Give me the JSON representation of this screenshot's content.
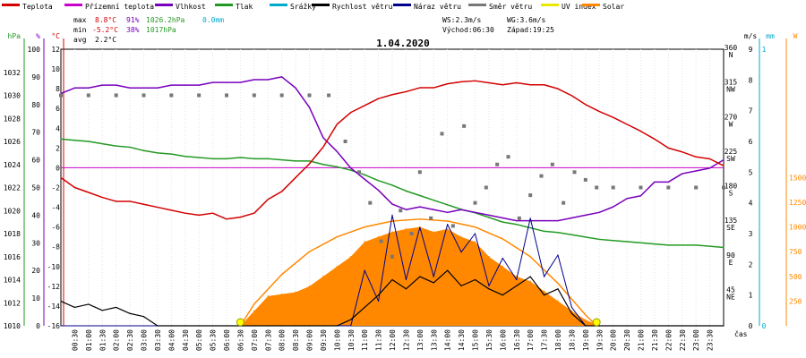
{
  "legend": [
    {
      "label": "Teplota",
      "color": "#d40000"
    },
    {
      "label": "Přízemní teplota",
      "color": "#cc00cc"
    },
    {
      "label": "Vlhkost",
      "color": "#7700bb"
    },
    {
      "label": "Tlak",
      "color": "#229922"
    },
    {
      "label": "Srážky",
      "color": "#00aacc"
    },
    {
      "label": "Rychlost větru",
      "color": "#000000"
    },
    {
      "label": "Náraz větru",
      "color": "#00008b"
    },
    {
      "label": "Směr větru",
      "color": "#777777"
    },
    {
      "label": "UV index",
      "color": "#e8e800"
    },
    {
      "label": "Solar",
      "color": "#ff8800"
    }
  ],
  "stats": {
    "max_label": "max",
    "min_label": "min",
    "avg_label": "avg",
    "max_temp": "8.8°C",
    "min_temp": "-5.2°C",
    "avg_temp": "2.2°C",
    "max_hum": "91%",
    "min_hum": "38%",
    "max_press": "1026.2hPa",
    "min_press": "1017hPa",
    "max_rain": "0.0mm"
  },
  "info": {
    "ws": "WS:2.3m/s",
    "wg": "WG:3.6m/s",
    "sunrise": "Východ:06:30",
    "sunset": "Západ:19:25"
  },
  "chart_data": {
    "type": "line",
    "title": "1.04.2020",
    "x_unit": "čas",
    "x_ticks": [
      "00:30",
      "01:00",
      "01:30",
      "02:00",
      "02:30",
      "03:00",
      "03:30",
      "04:00",
      "04:30",
      "05:00",
      "05:30",
      "06:00",
      "06:30",
      "07:00",
      "07:30",
      "08:00",
      "08:30",
      "09:00",
      "09:30",
      "10:00",
      "10:30",
      "11:00",
      "11:30",
      "12:00",
      "12:30",
      "13:00",
      "13:30",
      "14:00",
      "14:30",
      "15:00",
      "15:30",
      "16:00",
      "16:30",
      "17:00",
      "17:30",
      "18:00",
      "18:30",
      "19:00",
      "19:30",
      "20:00",
      "20:30",
      "21:00",
      "21:30",
      "22:00",
      "22:30",
      "23:00",
      "23:30"
    ],
    "axes": {
      "pressure": {
        "unit": "hPa",
        "range": [
          1010,
          1034
        ],
        "ticks": [
          "1010",
          "1012",
          "1014",
          "1016",
          "1018",
          "1020",
          "1022",
          "1024",
          "1026",
          "1028",
          "1030",
          "1032"
        ]
      },
      "humidity": {
        "unit": "%",
        "range": [
          0,
          100
        ],
        "ticks": [
          "0",
          "10",
          "20",
          "30",
          "40",
          "50",
          "60",
          "70",
          "80",
          "90",
          "100"
        ]
      },
      "temperature": {
        "unit": "°C",
        "range": [
          -16,
          12
        ],
        "ticks": [
          "-16",
          "-14",
          "-12",
          "-10",
          "-8",
          "-6",
          "-4",
          "-2",
          "0",
          "2",
          "4",
          "6",
          "8",
          "10",
          "12"
        ]
      },
      "wind_speed": {
        "unit": "m/s",
        "range": [
          0,
          9
        ],
        "ticks": [
          "0",
          "1",
          "2",
          "3",
          "4",
          "5",
          "6",
          "7",
          "8",
          "9"
        ]
      },
      "wind_direction": {
        "range": [
          0,
          360
        ],
        "ticks": [
          {
            "v": 45,
            "l": "45",
            "d": "NE"
          },
          {
            "v": 90,
            "l": "90",
            "d": "E"
          },
          {
            "v": 135,
            "l": "135",
            "d": "SE"
          },
          {
            "v": 180,
            "l": "180",
            "d": "S"
          },
          {
            "v": 225,
            "l": "225",
            "d": "SW"
          },
          {
            "v": 270,
            "l": "270",
            "d": "W"
          },
          {
            "v": 315,
            "l": "315",
            "d": "NW"
          },
          {
            "v": 360,
            "l": "360",
            "d": "N"
          }
        ]
      },
      "rain": {
        "unit": "mm",
        "range": [
          0,
          1
        ],
        "ticks": [
          "0",
          "1"
        ]
      },
      "solar": {
        "unit": "W",
        "range": [
          0,
          2800
        ],
        "ticks": [
          "250",
          "500",
          "750",
          "1000",
          "1250",
          "1500"
        ]
      }
    },
    "series": {
      "temperature": {
        "name": "Teplota",
        "color": "#d40000",
        "x": [
          0,
          0.5,
          1,
          1.5,
          2,
          2.5,
          3,
          3.5,
          4,
          4.5,
          5,
          5.5,
          6,
          6.5,
          7,
          7.5,
          8,
          8.5,
          9,
          9.5,
          10,
          10.5,
          11,
          11.5,
          12,
          12.5,
          13,
          13.5,
          14,
          14.5,
          15,
          15.5,
          16,
          16.5,
          17,
          17.5,
          18,
          18.5,
          19,
          19.5,
          20,
          20.5,
          21,
          21.5,
          22,
          22.5,
          23,
          23.5,
          24
        ],
        "y": [
          -1,
          -2,
          -2.5,
          -3,
          -3.4,
          -3.4,
          -3.7,
          -4,
          -4.3,
          -4.6,
          -4.8,
          -4.6,
          -5.2,
          -5,
          -4.6,
          -3.2,
          -2.4,
          -1,
          0.4,
          2.1,
          4.4,
          5.6,
          6.3,
          7,
          7.4,
          7.7,
          8.1,
          8.1,
          8.5,
          8.7,
          8.8,
          8.6,
          8.4,
          8.6,
          8.4,
          8.4,
          8.0,
          7.3,
          6.4,
          5.7,
          5.1,
          4.4,
          3.7,
          2.9,
          2.0,
          1.6,
          1.1,
          0.9,
          0.2
        ]
      },
      "humidity": {
        "name": "Vlhkost",
        "color": "#7700bb",
        "x": [
          0,
          0.5,
          1,
          1.5,
          2,
          2.5,
          3,
          3.5,
          4,
          4.5,
          5,
          5.5,
          6,
          6.5,
          7,
          7.5,
          8,
          8.5,
          9,
          9.5,
          10,
          10.5,
          11,
          11.5,
          12,
          12.5,
          13,
          13.5,
          14,
          14.5,
          15,
          15.5,
          16,
          16.5,
          17,
          17.5,
          18,
          18.5,
          19,
          19.5,
          20,
          20.5,
          21,
          21.5,
          22,
          22.5,
          23,
          23.5,
          24
        ],
        "y": [
          84,
          86,
          86,
          87,
          87,
          86,
          86,
          86,
          87,
          87,
          87,
          88,
          88,
          88,
          89,
          89,
          90,
          86,
          79,
          68,
          63,
          57,
          53,
          49,
          44,
          42,
          43,
          42,
          41,
          42,
          41,
          40,
          39,
          38,
          38,
          38,
          38,
          39,
          40,
          41,
          43,
          46,
          47,
          52,
          52,
          55,
          56,
          57,
          60
        ]
      },
      "pressure": {
        "name": "Tlak",
        "color": "#229922",
        "x": [
          0,
          0.5,
          1,
          1.5,
          2,
          2.5,
          3,
          3.5,
          4,
          4.5,
          5,
          5.5,
          6,
          6.5,
          7,
          7.5,
          8,
          8.5,
          9,
          9.5,
          10,
          10.5,
          11,
          11.5,
          12,
          12.5,
          13,
          13.5,
          14,
          14.5,
          15,
          15.5,
          16,
          16.5,
          17,
          17.5,
          18,
          18.5,
          19,
          19.5,
          20,
          20.5,
          21,
          21.5,
          22,
          22.5,
          23,
          23.5,
          24
        ],
        "y": [
          1026.2,
          1026.1,
          1026.0,
          1025.8,
          1025.6,
          1025.5,
          1025.2,
          1025.0,
          1024.9,
          1024.7,
          1024.6,
          1024.5,
          1024.5,
          1024.6,
          1024.5,
          1024.5,
          1024.4,
          1024.3,
          1024.3,
          1024.0,
          1023.8,
          1023.5,
          1023.1,
          1022.6,
          1022.2,
          1021.7,
          1021.3,
          1020.9,
          1020.5,
          1020.1,
          1019.8,
          1019.4,
          1019.0,
          1018.8,
          1018.5,
          1018.2,
          1018.1,
          1017.9,
          1017.7,
          1017.5,
          1017.4,
          1017.3,
          1017.2,
          1017.1,
          1017.0,
          1017.0,
          1017.0,
          1016.9,
          1016.8
        ]
      },
      "wind_speed": {
        "name": "Rychlost větru",
        "color": "#000000",
        "x": [
          0,
          0.5,
          1,
          1.5,
          2,
          2.5,
          3,
          3.5,
          4,
          4.5,
          5,
          5.5,
          6,
          6.5,
          7,
          7.5,
          8,
          8.5,
          9,
          9.5,
          10,
          10.5,
          11,
          11.5,
          12,
          12.5,
          13,
          13.5,
          14,
          14.5,
          15,
          15.5,
          16,
          16.5,
          17,
          17.5,
          18,
          18.5,
          19,
          19.5,
          20,
          20.5,
          21,
          21.5,
          22,
          22.5,
          23,
          23.5,
          24
        ],
        "y": [
          0.8,
          0.6,
          0.7,
          0.5,
          0.6,
          0.4,
          0.3,
          0,
          0,
          0,
          0,
          0,
          0,
          0,
          0,
          0,
          0,
          0,
          0,
          0,
          0,
          0.2,
          0.6,
          1.0,
          1.5,
          1.2,
          1.6,
          1.4,
          1.8,
          1.3,
          1.5,
          1.2,
          1.0,
          1.3,
          1.6,
          1.0,
          1.2,
          0.4,
          0,
          0,
          0,
          0,
          0,
          0,
          0,
          0,
          0,
          0,
          0
        ]
      },
      "wind_gust": {
        "name": "Náraz větru",
        "color": "#00008b",
        "x": [
          0,
          0.5,
          1,
          1.5,
          2,
          2.5,
          3,
          3.5,
          4,
          4.5,
          5,
          5.5,
          6,
          6.5,
          7,
          7.5,
          8,
          8.5,
          9,
          9.5,
          10,
          10.5,
          11,
          11.5,
          12,
          12.5,
          13,
          13.5,
          14,
          14.5,
          15,
          15.5,
          16,
          16.5,
          17,
          17.5,
          18,
          18.5,
          19,
          19.5,
          20,
          20.5,
          21,
          21.5,
          22,
          22.5,
          23,
          23.5,
          24
        ],
        "y": [
          0,
          0,
          0,
          0,
          0,
          0,
          0,
          0,
          0,
          0,
          0,
          0,
          0,
          0,
          0,
          0,
          0,
          0,
          0,
          0,
          0,
          0,
          1.8,
          0.8,
          3.6,
          1.5,
          3.2,
          1.6,
          3.3,
          2.4,
          3.0,
          1.3,
          2.2,
          1.5,
          3.5,
          1.6,
          2.3,
          0.6,
          0,
          0,
          0,
          0,
          0,
          0,
          0,
          0,
          0,
          0,
          0
        ]
      },
      "wind_direction": {
        "name": "Směr větru",
        "color": "#777777",
        "x": [
          0,
          1,
          2,
          3,
          4,
          5,
          6,
          7,
          8,
          9,
          9.7,
          10.3,
          10.8,
          11.2,
          11.6,
          12,
          12.3,
          12.7,
          13,
          13.4,
          13.8,
          14.2,
          14.6,
          15,
          15.4,
          15.8,
          16.2,
          16.6,
          17,
          17.4,
          17.8,
          18.2,
          18.6,
          19,
          19.4,
          20,
          21,
          22,
          23,
          24
        ],
        "y": [
          300,
          300,
          300,
          300,
          300,
          300,
          300,
          300,
          300,
          300,
          300,
          240,
          200,
          160,
          110,
          90,
          150,
          120,
          200,
          140,
          250,
          130,
          260,
          160,
          180,
          210,
          220,
          140,
          170,
          195,
          210,
          160,
          200,
          190,
          180,
          180,
          180,
          180,
          180,
          180
        ]
      },
      "solar": {
        "name": "Solar",
        "color": "#ff8800",
        "x": [
          6.5,
          7,
          7.5,
          8,
          8.5,
          9,
          9.5,
          10,
          10.5,
          11,
          11.5,
          12,
          12.5,
          13,
          13.5,
          14,
          14.5,
          15,
          15.5,
          16,
          16.5,
          17,
          17.5,
          18,
          18.5,
          19,
          19.5
        ],
        "y": [
          0,
          150,
          300,
          320,
          340,
          400,
          500,
          600,
          700,
          850,
          900,
          950,
          980,
          1000,
          950,
          980,
          900,
          850,
          700,
          600,
          500,
          450,
          350,
          250,
          150,
          60,
          0
        ]
      },
      "solar_theoretical": {
        "name": "Solar",
        "color": "#ff8800",
        "x": [
          6.5,
          7,
          8,
          9,
          10,
          11,
          12,
          13,
          14,
          15,
          16,
          17,
          18,
          19,
          19.4
        ],
        "y": [
          0,
          220,
          520,
          750,
          900,
          1000,
          1060,
          1080,
          1060,
          1000,
          880,
          700,
          430,
          110,
          0
        ]
      }
    }
  }
}
